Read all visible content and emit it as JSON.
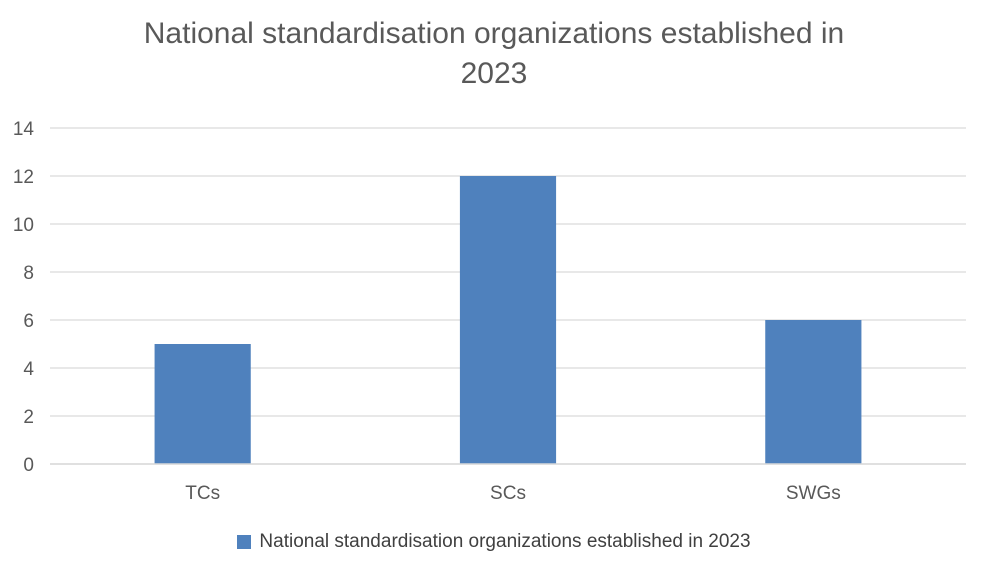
{
  "chart_data": {
    "type": "bar",
    "title_lines": [
      "National standardisation organizations established in",
      "2023"
    ],
    "categories": [
      "TCs",
      "SCs",
      "SWGs"
    ],
    "series": [
      {
        "name": "National standardisation organizations established in 2023",
        "values": [
          5,
          12,
          6
        ]
      }
    ],
    "ylim": [
      0,
      14
    ],
    "yticks": [
      0,
      2,
      4,
      6,
      8,
      10,
      12,
      14
    ],
    "ytick_labels": [
      "0",
      "2",
      "4",
      "6",
      "8",
      "10",
      "12",
      "14"
    ],
    "xlabel": "",
    "ylabel": "",
    "grid": true,
    "legend_position": "bottom",
    "colors": {
      "bar": "#4F81BD",
      "grid": "#D9D9D9",
      "axis_text": "#595959"
    }
  }
}
